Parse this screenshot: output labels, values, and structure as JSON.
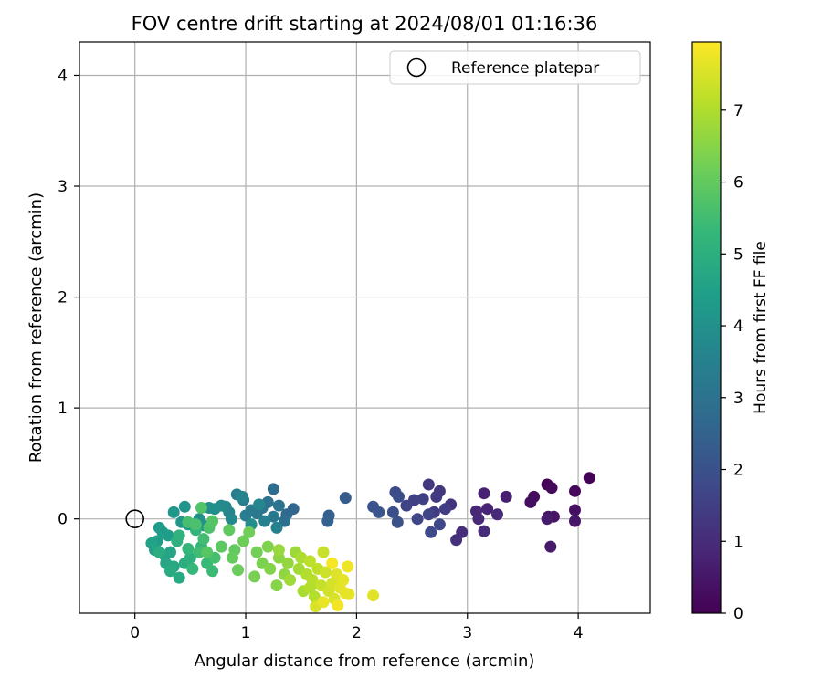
{
  "chart_data": {
    "type": "scatter",
    "title": "FOV centre drift starting at 2024/08/01 01:16:36",
    "xlabel": "Angular distance from reference (arcmin)",
    "ylabel": "Rotation from reference (arcmin)",
    "xlim": [
      -0.5,
      4.65
    ],
    "ylim": [
      -0.85,
      4.3
    ],
    "xticks": [
      "0",
      "1",
      "2",
      "3",
      "4"
    ],
    "yticks": [
      "0",
      "1",
      "2",
      "3",
      "4"
    ],
    "grid": true,
    "legend": {
      "position": "top-right",
      "label": "Reference platepar",
      "marker": "open-circle"
    },
    "reference_point": {
      "x": 0,
      "y": 0
    },
    "colorbar": {
      "label": "Hours from first FF file",
      "range": [
        0,
        7.95
      ],
      "ticks": [
        "0",
        "1",
        "2",
        "3",
        "4",
        "5",
        "6",
        "7"
      ],
      "colormap": "viridis"
    },
    "colormap_stops": [
      "#440154",
      "#482878",
      "#3e4989",
      "#31688e",
      "#26828e",
      "#1f9e89",
      "#35b779",
      "#6ece58",
      "#b5de2b",
      "#fde725"
    ],
    "series": [
      {
        "points": [
          [
            4.1,
            0.37,
            0.05
          ],
          [
            3.72,
            0.31,
            0.1
          ],
          [
            3.97,
            0.25,
            0.15
          ],
          [
            3.76,
            0.28,
            0.2
          ],
          [
            3.6,
            0.2,
            0.25
          ],
          [
            3.57,
            0.15,
            0.3
          ],
          [
            3.97,
            0.08,
            0.35
          ],
          [
            3.73,
            0.02,
            0.4
          ],
          [
            3.78,
            0.02,
            0.45
          ],
          [
            3.97,
            -0.02,
            0.5
          ],
          [
            3.75,
            -0.25,
            0.55
          ],
          [
            3.72,
            0.0,
            0.6
          ],
          [
            3.35,
            0.2,
            0.7
          ],
          [
            3.15,
            0.23,
            0.75
          ],
          [
            3.18,
            0.09,
            0.8
          ],
          [
            3.08,
            0.07,
            0.85
          ],
          [
            3.1,
            0.0,
            0.9
          ],
          [
            3.27,
            0.04,
            0.95
          ],
          [
            3.15,
            -0.11,
            1.0
          ],
          [
            2.95,
            -0.12,
            1.05
          ],
          [
            2.9,
            -0.19,
            1.1
          ],
          [
            2.85,
            0.13,
            1.2
          ],
          [
            2.75,
            0.25,
            1.25
          ],
          [
            2.65,
            0.31,
            1.3
          ],
          [
            2.72,
            0.2,
            1.35
          ],
          [
            2.7,
            0.06,
            1.4
          ],
          [
            2.8,
            0.09,
            1.45
          ],
          [
            2.6,
            0.18,
            1.5
          ],
          [
            2.52,
            0.17,
            1.55
          ],
          [
            2.45,
            0.12,
            1.6
          ],
          [
            2.65,
            0.04,
            1.65
          ],
          [
            2.55,
            0.0,
            1.7
          ],
          [
            2.75,
            -0.05,
            1.75
          ],
          [
            2.67,
            -0.12,
            1.8
          ],
          [
            2.35,
            0.24,
            1.85
          ],
          [
            2.38,
            0.2,
            1.9
          ],
          [
            2.33,
            0.06,
            1.95
          ],
          [
            2.37,
            -0.03,
            2.0
          ],
          [
            2.15,
            0.11,
            2.05
          ],
          [
            2.2,
            0.06,
            2.1
          ],
          [
            1.9,
            0.19,
            2.3
          ],
          [
            1.75,
            0.03,
            2.4
          ],
          [
            1.74,
            -0.02,
            2.45
          ],
          [
            1.43,
            0.09,
            2.6
          ],
          [
            1.37,
            0.04,
            2.7
          ],
          [
            1.25,
            0.27,
            2.8
          ],
          [
            1.35,
            -0.02,
            2.9
          ],
          [
            1.2,
            0.15,
            3.0
          ],
          [
            1.3,
            0.12,
            3.05
          ],
          [
            1.15,
            0.1,
            3.1
          ],
          [
            1.1,
            0.05,
            3.15
          ],
          [
            1.25,
            0.02,
            3.2
          ],
          [
            1.05,
            0.08,
            3.25
          ],
          [
            0.98,
            0.17,
            3.3
          ],
          [
            1.0,
            0.03,
            3.35
          ],
          [
            0.92,
            0.22,
            3.4
          ],
          [
            1.17,
            -0.02,
            3.45
          ],
          [
            1.28,
            -0.08,
            3.5
          ],
          [
            0.85,
            0.06,
            3.55
          ],
          [
            0.97,
            0.2,
            3.6
          ],
          [
            1.12,
            0.13,
            3.65
          ],
          [
            0.82,
            0.11,
            3.7
          ],
          [
            0.87,
            0.0,
            3.75
          ],
          [
            0.78,
            0.12,
            3.8
          ],
          [
            1.05,
            -0.05,
            3.85
          ],
          [
            0.72,
            0.09,
            3.9
          ],
          [
            0.67,
            0.1,
            3.95
          ],
          [
            0.58,
            0.0,
            4.0
          ],
          [
            0.63,
            -0.06,
            4.05
          ],
          [
            0.45,
            0.11,
            4.1
          ],
          [
            0.35,
            0.06,
            4.15
          ],
          [
            0.42,
            -0.03,
            4.2
          ],
          [
            0.48,
            -0.05,
            4.25
          ],
          [
            0.22,
            -0.08,
            4.3
          ],
          [
            0.25,
            -0.12,
            4.35
          ],
          [
            0.3,
            -0.15,
            4.4
          ],
          [
            0.2,
            -0.2,
            4.45
          ],
          [
            0.18,
            -0.28,
            4.5
          ],
          [
            0.15,
            -0.22,
            4.55
          ],
          [
            0.27,
            -0.33,
            4.6
          ],
          [
            0.32,
            -0.3,
            4.65
          ],
          [
            0.28,
            -0.4,
            4.7
          ],
          [
            0.35,
            -0.43,
            4.75
          ],
          [
            0.4,
            -0.53,
            4.8
          ],
          [
            0.32,
            -0.47,
            4.85
          ],
          [
            0.22,
            -0.3,
            4.9
          ],
          [
            0.45,
            -0.4,
            4.95
          ],
          [
            0.5,
            -0.35,
            5.0
          ],
          [
            0.38,
            -0.2,
            5.05
          ],
          [
            0.4,
            -0.15,
            5.1
          ],
          [
            0.55,
            -0.1,
            5.15
          ],
          [
            0.6,
            -0.25,
            5.2
          ],
          [
            0.48,
            -0.27,
            5.25
          ],
          [
            0.52,
            -0.45,
            5.3
          ],
          [
            0.65,
            -0.4,
            5.35
          ],
          [
            0.7,
            -0.47,
            5.4
          ],
          [
            0.58,
            -0.3,
            5.45
          ],
          [
            0.62,
            -0.18,
            5.5
          ],
          [
            0.72,
            -0.35,
            5.55
          ],
          [
            0.48,
            -0.03,
            5.6
          ],
          [
            0.55,
            -0.05,
            5.65
          ],
          [
            0.67,
            -0.08,
            5.7
          ],
          [
            0.6,
            0.1,
            5.75
          ],
          [
            0.7,
            -0.02,
            5.8
          ],
          [
            0.65,
            -0.3,
            5.85
          ],
          [
            0.78,
            -0.25,
            5.9
          ],
          [
            0.85,
            -0.1,
            5.95
          ],
          [
            0.9,
            -0.28,
            6.0
          ],
          [
            0.88,
            -0.35,
            6.05
          ],
          [
            0.93,
            -0.46,
            6.1
          ],
          [
            0.98,
            -0.2,
            6.15
          ],
          [
            1.03,
            -0.12,
            6.2
          ],
          [
            1.1,
            -0.3,
            6.25
          ],
          [
            1.08,
            -0.52,
            6.3
          ],
          [
            1.15,
            -0.4,
            6.35
          ],
          [
            1.2,
            -0.25,
            6.4
          ],
          [
            1.22,
            -0.45,
            6.45
          ],
          [
            1.28,
            -0.6,
            6.5
          ],
          [
            1.3,
            -0.35,
            6.55
          ],
          [
            1.35,
            -0.5,
            6.6
          ],
          [
            1.38,
            -0.4,
            6.65
          ],
          [
            1.3,
            -0.28,
            6.7
          ],
          [
            1.45,
            -0.3,
            6.75
          ],
          [
            1.4,
            -0.55,
            6.8
          ],
          [
            1.48,
            -0.45,
            6.85
          ],
          [
            1.52,
            -0.65,
            6.9
          ],
          [
            1.5,
            -0.35,
            6.95
          ],
          [
            1.55,
            -0.5,
            7.0
          ],
          [
            1.62,
            -0.7,
            7.05
          ],
          [
            1.6,
            -0.55,
            7.1
          ],
          [
            1.58,
            -0.38,
            7.15
          ],
          [
            1.65,
            -0.45,
            7.2
          ],
          [
            1.68,
            -0.6,
            7.25
          ],
          [
            1.7,
            -0.3,
            7.3
          ],
          [
            1.72,
            -0.48,
            7.35
          ],
          [
            1.75,
            -0.65,
            7.4
          ],
          [
            1.78,
            -0.58,
            7.45
          ],
          [
            1.8,
            -0.72,
            7.5
          ],
          [
            1.82,
            -0.5,
            7.55
          ],
          [
            1.85,
            -0.62,
            7.6
          ],
          [
            1.88,
            -0.55,
            7.65
          ],
          [
            1.9,
            -0.67,
            7.7
          ],
          [
            1.92,
            -0.43,
            7.75
          ],
          [
            1.83,
            -0.78,
            7.8
          ],
          [
            1.78,
            -0.4,
            7.85
          ],
          [
            2.15,
            -0.69,
            7.6
          ],
          [
            1.63,
            -0.79,
            7.5
          ],
          [
            1.58,
            -0.62,
            7.05
          ],
          [
            1.93,
            -0.68,
            7.65
          ],
          [
            1.7,
            -0.75,
            7.7
          ]
        ]
      }
    ]
  }
}
